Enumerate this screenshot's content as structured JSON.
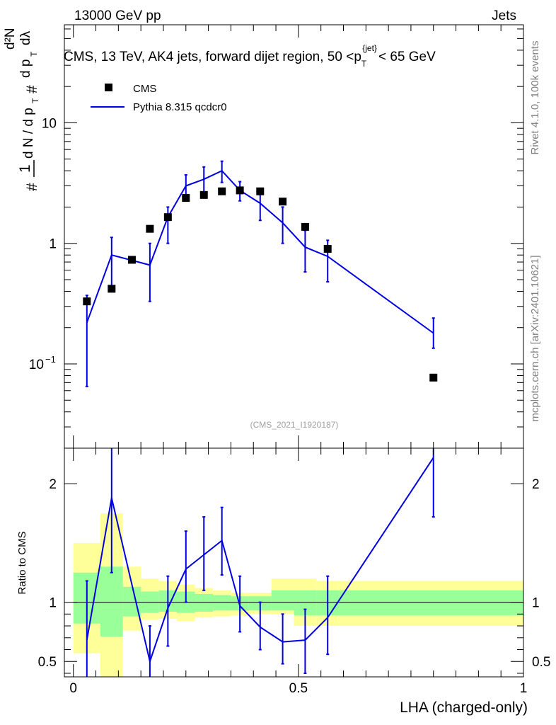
{
  "header": {
    "left": "13000 GeV pp",
    "right": "Jets"
  },
  "side_labels": {
    "rivet": "Rivet 4.1.0,  100k events",
    "mcplots": "mcplots.cern.ch [arXiv:2401.10621]"
  },
  "watermark": "(CMS_2021_I1920187)",
  "chart_data": {
    "type": "line",
    "title": "CMS, 13 TeV, AK4 jets, forward dijet region, 50 <p_T^{jet}< 65 GeV",
    "title_parts": {
      "main": "CMS, 13 TeV, AK4 jets, forward dijet region, 50 <",
      "p": "p",
      "sub": "T",
      "sup": "{jet}",
      "tail": "< 65 GeV"
    },
    "ylabel": "1/dN/dp_T  dN/dp_T dλ",
    "ylabel_parts": {
      "hash": "#",
      "one": "1",
      "dn": "d N / d p",
      "d2n": "d²N",
      "dp": "d p",
      "dl": "dλ",
      "T": "T"
    },
    "xlabel": "LHA (charged-only)",
    "yscale": "log",
    "ylim": [
      0.02,
      65
    ],
    "xlim": [
      -0.02,
      1.0
    ],
    "yticks": [
      {
        "value": 0.1,
        "label": "10",
        "exp": "−1"
      },
      {
        "value": 1,
        "label": "1",
        "exp": ""
      },
      {
        "value": 10,
        "label": "10",
        "exp": ""
      }
    ],
    "xticks": [
      {
        "value": 0,
        "label": "0"
      },
      {
        "value": 0.5,
        "label": "0.5"
      },
      {
        "value": 1,
        "label": "1"
      }
    ],
    "legend": {
      "position": "top-left",
      "entries": [
        {
          "label": "CMS",
          "style": "marker",
          "color": "#000000"
        },
        {
          "label": "Pythia 8.315 qcdcr0",
          "style": "line",
          "color": "#0000e0"
        }
      ]
    },
    "series": [
      {
        "name": "CMS",
        "color": "#000000",
        "x": [
          0.03,
          0.085,
          0.13,
          0.17,
          0.21,
          0.25,
          0.29,
          0.33,
          0.37,
          0.415,
          0.465,
          0.515,
          0.565,
          0.8
        ],
        "y": [
          0.33,
          0.42,
          0.73,
          1.32,
          1.65,
          2.38,
          2.52,
          2.7,
          2.75,
          2.7,
          2.22,
          1.37,
          0.9,
          0.077
        ]
      },
      {
        "name": "Pythia 8.315 qcdcr0",
        "color": "#0000e0",
        "x": [
          0.03,
          0.085,
          0.17,
          0.21,
          0.25,
          0.29,
          0.33,
          0.37,
          0.415,
          0.465,
          0.515,
          0.565,
          0.8
        ],
        "y": [
          0.22,
          0.8,
          0.66,
          1.65,
          3.0,
          3.4,
          4.0,
          2.75,
          2.15,
          1.48,
          0.93,
          0.78,
          0.18
        ],
        "err_lo": [
          0.065,
          0.42,
          0.33,
          1.0,
          2.35,
          2.55,
          3.2,
          2.25,
          1.55,
          1.0,
          0.58,
          0.48,
          0.135
        ],
        "err_hi": [
          0.37,
          1.12,
          1.0,
          2.0,
          3.7,
          4.3,
          4.8,
          3.25,
          2.75,
          2.0,
          1.28,
          1.06,
          0.24
        ]
      }
    ],
    "ratio": {
      "ylabel": "Ratio to CMS",
      "ylim": [
        0.37,
        2.3
      ],
      "yticks": [
        {
          "value": 0.5,
          "label": "0.5"
        },
        {
          "value": 1,
          "label": "1"
        },
        {
          "value": 2,
          "label": "2"
        }
      ],
      "mc": {
        "x": [
          0.03,
          0.085,
          0.17,
          0.21,
          0.25,
          0.29,
          0.33,
          0.37,
          0.415,
          0.465,
          0.515,
          0.565,
          0.8
        ],
        "y": [
          0.68,
          1.88,
          0.5,
          0.95,
          1.28,
          1.4,
          1.52,
          0.97,
          0.79,
          0.665,
          0.68,
          0.87,
          2.22
        ],
        "lo": [
          0.3,
          1.25,
          0.3,
          0.63,
          1.0,
          1.1,
          1.23,
          0.75,
          0.6,
          0.48,
          0.4,
          0.56,
          1.72
        ],
        "hi": [
          1.18,
          2.3,
          0.8,
          1.22,
          1.6,
          1.72,
          1.8,
          1.22,
          1.0,
          0.9,
          0.94,
          1.22,
          2.3
        ]
      },
      "bands": {
        "x_edges": [
          0.0,
          0.06,
          0.11,
          0.15,
          0.19,
          0.23,
          0.27,
          0.31,
          0.35,
          0.39,
          0.44,
          0.49,
          0.54,
          0.59,
          1.0
        ],
        "yellow_lo": [
          0.57,
          0.36,
          0.76,
          0.85,
          0.86,
          0.84,
          0.87,
          0.88,
          0.89,
          0.9,
          0.9,
          0.8,
          0.8,
          0.8
        ],
        "yellow_hi": [
          1.5,
          1.75,
          1.3,
          1.2,
          1.18,
          1.15,
          1.12,
          1.1,
          1.08,
          1.08,
          1.2,
          1.2,
          1.18,
          1.18
        ],
        "green_lo": [
          0.82,
          0.71,
          0.88,
          0.91,
          0.92,
          0.91,
          0.92,
          0.93,
          0.93,
          0.93,
          0.93,
          0.89,
          0.89,
          0.89
        ],
        "green_hi": [
          1.25,
          1.3,
          1.13,
          1.09,
          1.1,
          1.09,
          1.07,
          1.06,
          1.05,
          1.05,
          1.1,
          1.1,
          1.1,
          1.1
        ]
      }
    }
  }
}
